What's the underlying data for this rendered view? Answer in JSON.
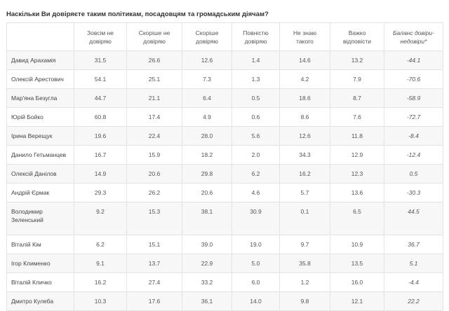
{
  "title": "Наскільки Ви довіряєте таким політикам, посадовцям та громадським діячам?",
  "headers": [
    "",
    "Зовсім не довіряю",
    "Скоріше не довіряю",
    "Скоріше довіряю",
    "Повністю довіряю",
    "Не знаю такого",
    "Важко відповісти",
    "Баланс довіри-недовіри*"
  ],
  "rows": [
    [
      "Давид Арахамія",
      "31.5",
      "26.6",
      "12.6",
      "1.4",
      "14.6",
      "13.2",
      "-44.1"
    ],
    [
      "Олексій Арестович",
      "54.1",
      "25.1",
      "7.3",
      "1.3",
      "4.2",
      "7.9",
      "-70.6"
    ],
    [
      "Мар'яна Безугла",
      "44.7",
      "21.1",
      "6.4",
      "0.5",
      "18.6",
      "8.7",
      "-58.9"
    ],
    [
      "Юрій Бойко",
      "60.8",
      "17.4",
      "4.9",
      "0.6",
      "8.6",
      "7.6",
      "-72.7"
    ],
    [
      "Ірина Верещук",
      "19.6",
      "22.4",
      "28.0",
      "5.6",
      "12.6",
      "11.8",
      "-8.4"
    ],
    [
      "Данило Гетьманцев",
      "16.7",
      "15.9",
      "18.2",
      "2.0",
      "34.3",
      "12.9",
      "-12.4"
    ],
    [
      "Олексій Данілов",
      "14.9",
      "20.6",
      "29.8",
      "6.2",
      "16.2",
      "12.3",
      "0.5"
    ],
    [
      "Андрій Єрмак",
      "29.3",
      "26.2",
      "20.6",
      "4.6",
      "5.7",
      "13.6",
      "-30.3"
    ],
    [
      "Володимир Зеленський",
      "9.2",
      "15.3",
      "38.1",
      "30.9",
      "0.1",
      "6.5",
      "44.5"
    ],
    [
      "Віталій Кім",
      "6.2",
      "15.1",
      "39.0",
      "19.0",
      "9.7",
      "10.9",
      "36.7"
    ],
    [
      "Ігор Клименко",
      "9.1",
      "13.7",
      "22.9",
      "5.0",
      "35.8",
      "13.5",
      "5.1"
    ],
    [
      "Віталій Кличко",
      "16.2",
      "27.4",
      "33.2",
      "6.0",
      "1.2",
      "16.0",
      "-4.4"
    ],
    [
      "Дмитро Кулеба",
      "10.3",
      "17.6",
      "36.1",
      "14.0",
      "9.8",
      "12.1",
      "22.2"
    ]
  ]
}
